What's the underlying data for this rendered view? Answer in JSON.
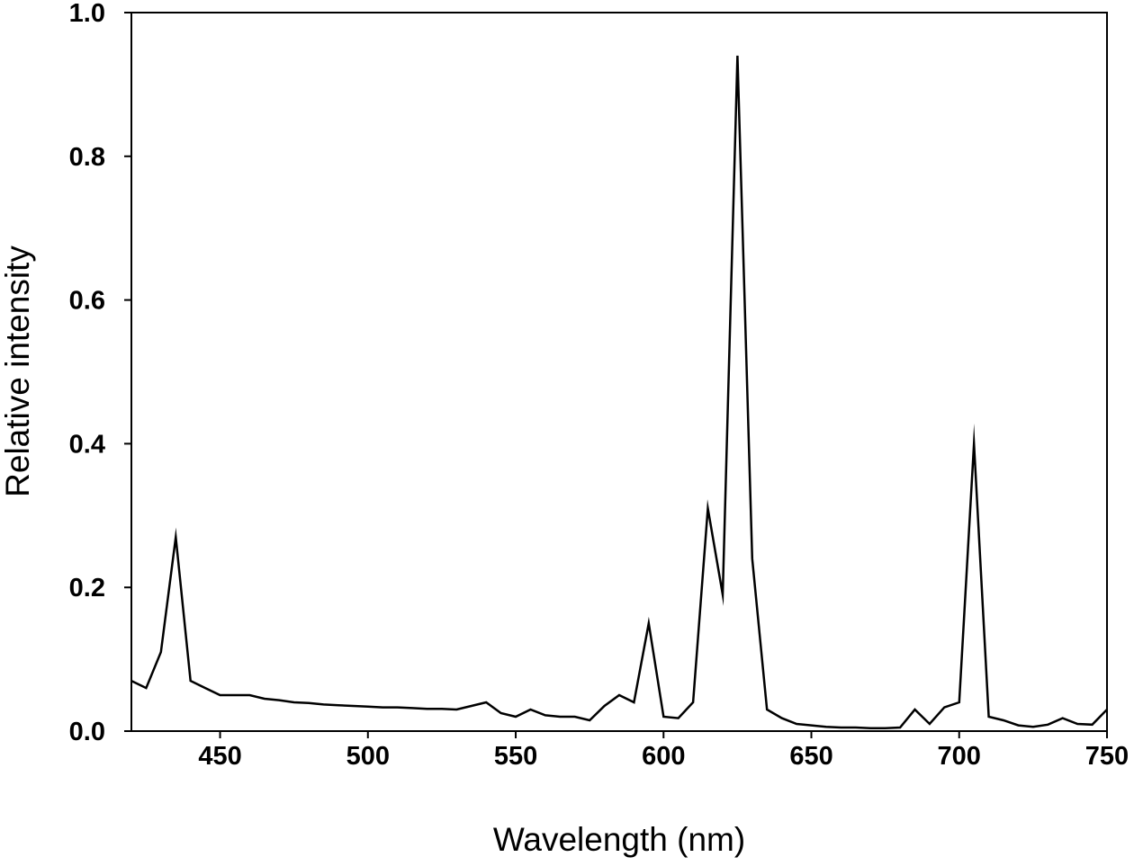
{
  "chart_data": {
    "type": "line",
    "title": "",
    "xlabel": "Wavelength (nm)",
    "ylabel": "Relative intensity",
    "xlim": [
      420,
      750
    ],
    "ylim": [
      0.0,
      1.0
    ],
    "xticks": [
      450,
      500,
      550,
      600,
      650,
      700,
      750
    ],
    "xtick_labels": [
      "450",
      "500",
      "550",
      "600",
      "650",
      "700",
      "750"
    ],
    "yticks": [
      0.0,
      0.2,
      0.4,
      0.6,
      0.8,
      1.0
    ],
    "ytick_labels": [
      "0.0",
      "0.2",
      "0.4",
      "0.6",
      "0.8",
      "1.0"
    ],
    "grid": false,
    "legend": "none",
    "line_color": "#000000",
    "series": [
      {
        "x": [
          420,
          425,
          430,
          435,
          440,
          445,
          450,
          455,
          460,
          465,
          470,
          475,
          480,
          485,
          490,
          495,
          500,
          505,
          510,
          515,
          520,
          525,
          530,
          535,
          540,
          545,
          550,
          555,
          560,
          565,
          570,
          575,
          580,
          585,
          590,
          595,
          600,
          605,
          610,
          615,
          620,
          625,
          630,
          635,
          640,
          645,
          650,
          655,
          660,
          665,
          670,
          675,
          680,
          685,
          690,
          695,
          700,
          705,
          710,
          715,
          720,
          725,
          730,
          735,
          740,
          745,
          750
        ],
        "y": [
          0.07,
          0.06,
          0.11,
          0.27,
          0.07,
          0.06,
          0.05,
          0.05,
          0.05,
          0.045,
          0.043,
          0.04,
          0.039,
          0.037,
          0.036,
          0.035,
          0.034,
          0.033,
          0.033,
          0.032,
          0.031,
          0.031,
          0.03,
          0.035,
          0.04,
          0.025,
          0.02,
          0.03,
          0.022,
          0.02,
          0.02,
          0.015,
          0.035,
          0.05,
          0.04,
          0.15,
          0.02,
          0.018,
          0.04,
          0.31,
          0.19,
          0.94,
          0.24,
          0.03,
          0.018,
          0.01,
          0.008,
          0.006,
          0.005,
          0.005,
          0.004,
          0.004,
          0.005,
          0.03,
          0.01,
          0.033,
          0.04,
          0.4,
          0.02,
          0.015,
          0.008,
          0.006,
          0.009,
          0.018,
          0.01,
          0.009,
          0.03
        ]
      }
    ]
  }
}
